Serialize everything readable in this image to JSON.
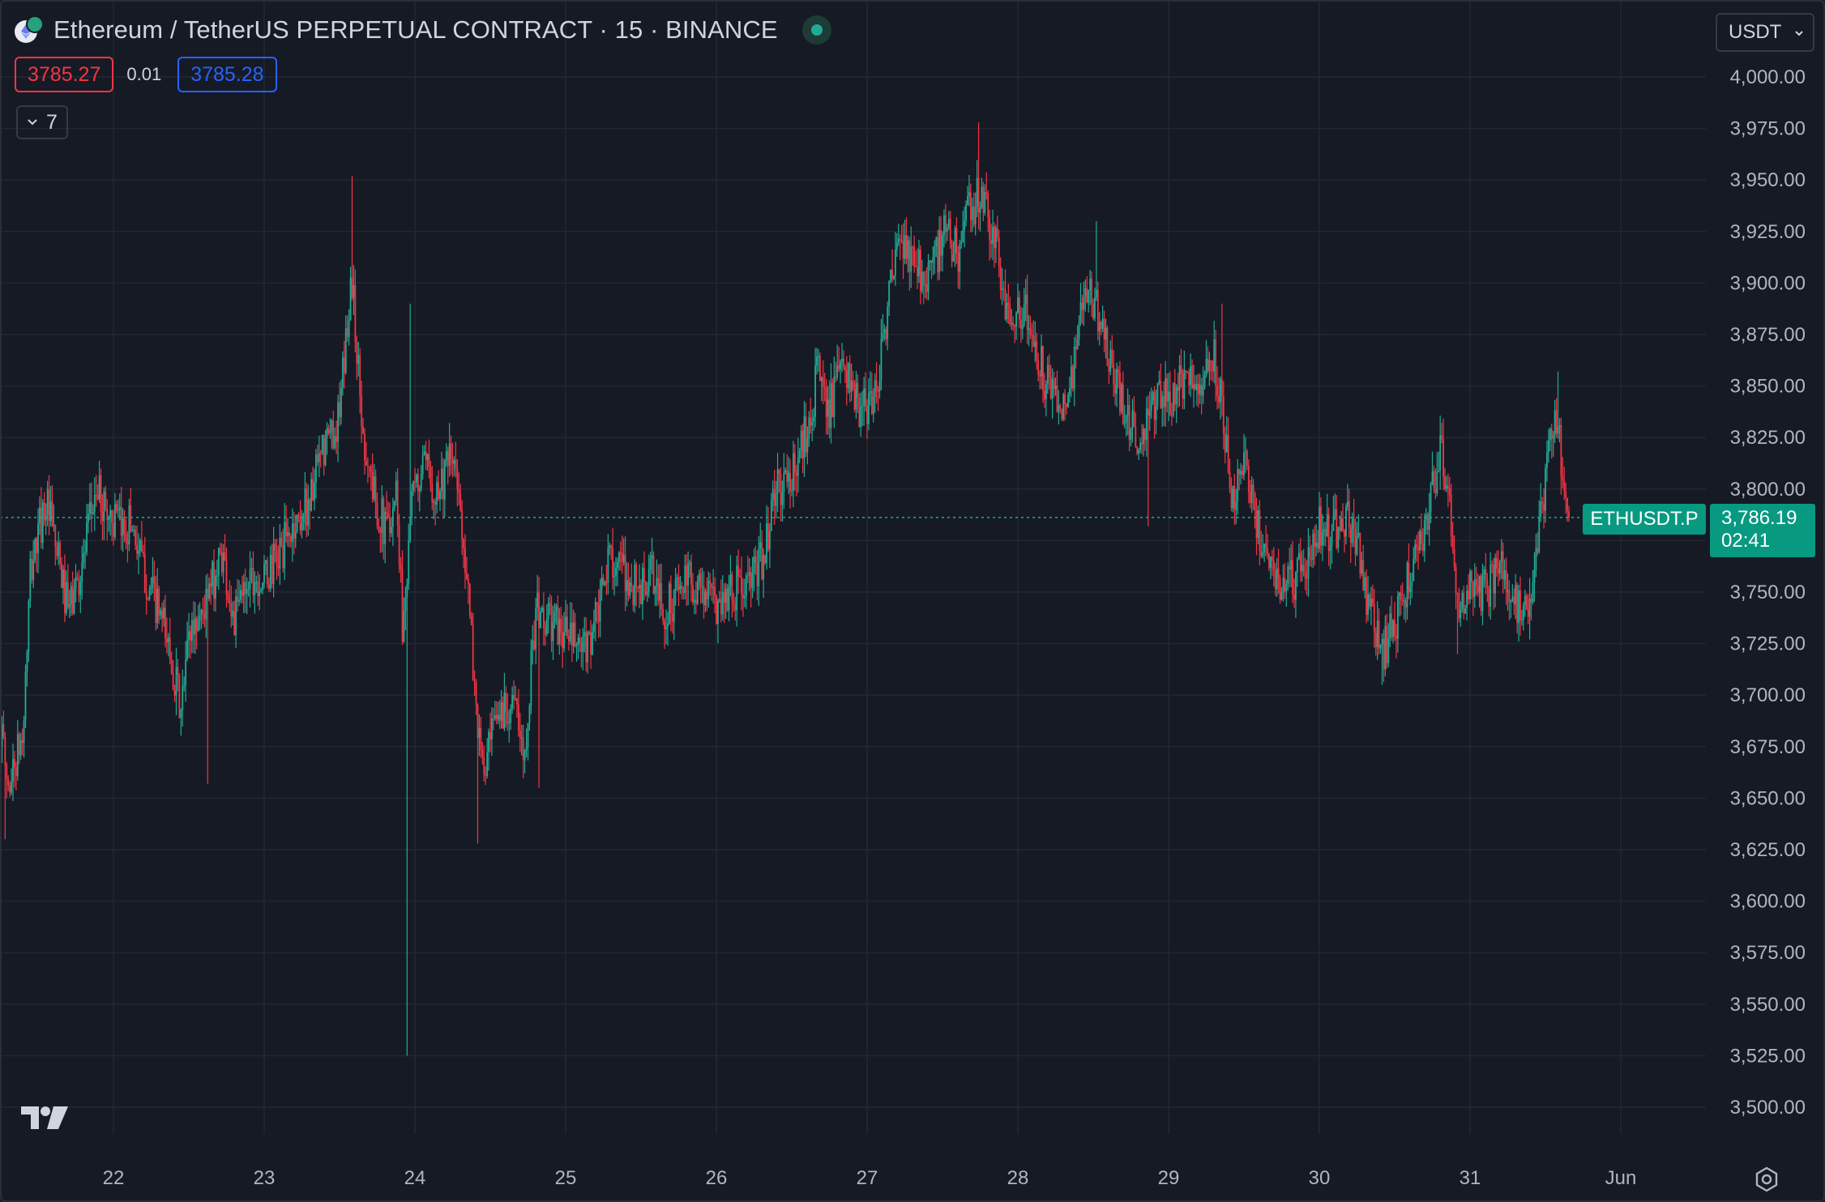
{
  "header": {
    "title": "Ethereum / TetherUS PERPETUAL CONTRACT · 15 · BINANCE",
    "bid": "3785.27",
    "spread": "0.01",
    "ask": "3785.28",
    "indicators_count": "7",
    "currency": "USDT"
  },
  "last_price": {
    "symbol": "ETHUSDT.P",
    "value": "3,786.19",
    "countdown": "02:41"
  },
  "colors": {
    "background": "#161a25",
    "grid": "#232733",
    "up": "#22ab94",
    "down": "#f23645",
    "axis_text": "#b2b5be"
  },
  "chart_data": {
    "type": "candlestick",
    "timeframe": "15",
    "ylim": [
      3490,
      4012
    ],
    "y_ticks": [
      "4,000.00",
      "3,975.00",
      "3,950.00",
      "3,925.00",
      "3,900.00",
      "3,875.00",
      "3,850.00",
      "3,825.00",
      "3,800.00",
      "3,775.00",
      "3,750.00",
      "3,725.00",
      "3,700.00",
      "3,675.00",
      "3,650.00",
      "3,625.00",
      "3,600.00",
      "3,575.00",
      "3,550.00",
      "3,525.00",
      "3,500.00"
    ],
    "x_ticks": [
      "22",
      "23",
      "24",
      "25",
      "26",
      "27",
      "28",
      "29",
      "30",
      "31",
      "Jun"
    ],
    "x_range": [
      21.25,
      32.0
    ],
    "last_price": 3786.19,
    "anchors": [
      [
        21.25,
        3685
      ],
      [
        21.3,
        3655
      ],
      [
        21.4,
        3680
      ],
      [
        21.45,
        3760
      ],
      [
        21.55,
        3795
      ],
      [
        21.62,
        3770
      ],
      [
        21.7,
        3740
      ],
      [
        21.8,
        3765
      ],
      [
        21.88,
        3800
      ],
      [
        21.95,
        3790
      ],
      [
        22.05,
        3780
      ],
      [
        22.12,
        3785
      ],
      [
        22.2,
        3760
      ],
      [
        22.3,
        3740
      ],
      [
        22.38,
        3720
      ],
      [
        22.45,
        3690
      ],
      [
        22.5,
        3730
      ],
      [
        22.62,
        3745
      ],
      [
        22.72,
        3770
      ],
      [
        22.8,
        3735
      ],
      [
        22.9,
        3760
      ],
      [
        23.0,
        3755
      ],
      [
        23.15,
        3775
      ],
      [
        23.3,
        3795
      ],
      [
        23.4,
        3820
      ],
      [
        23.5,
        3835
      ],
      [
        23.58,
        3905
      ],
      [
        23.65,
        3830
      ],
      [
        23.72,
        3800
      ],
      [
        23.8,
        3780
      ],
      [
        23.88,
        3800
      ],
      [
        23.92,
        3730
      ],
      [
        23.97,
        3790
      ],
      [
        24.05,
        3810
      ],
      [
        24.15,
        3800
      ],
      [
        24.25,
        3815
      ],
      [
        24.32,
        3780
      ],
      [
        24.4,
        3700
      ],
      [
        24.45,
        3660
      ],
      [
        24.55,
        3690
      ],
      [
        24.65,
        3700
      ],
      [
        24.72,
        3668
      ],
      [
        24.8,
        3740
      ],
      [
        24.9,
        3735
      ],
      [
        25.0,
        3730
      ],
      [
        25.12,
        3720
      ],
      [
        25.22,
        3740
      ],
      [
        25.3,
        3770
      ],
      [
        25.4,
        3755
      ],
      [
        25.5,
        3752
      ],
      [
        25.58,
        3758
      ],
      [
        25.65,
        3738
      ],
      [
        25.75,
        3752
      ],
      [
        25.85,
        3755
      ],
      [
        26.0,
        3745
      ],
      [
        26.1,
        3752
      ],
      [
        26.22,
        3752
      ],
      [
        26.3,
        3765
      ],
      [
        26.4,
        3800
      ],
      [
        26.5,
        3805
      ],
      [
        26.6,
        3830
      ],
      [
        26.68,
        3858
      ],
      [
        26.75,
        3840
      ],
      [
        26.85,
        3860
      ],
      [
        26.95,
        3835
      ],
      [
        27.05,
        3845
      ],
      [
        27.15,
        3895
      ],
      [
        27.22,
        3920
      ],
      [
        27.3,
        3910
      ],
      [
        27.38,
        3905
      ],
      [
        27.45,
        3910
      ],
      [
        27.52,
        3925
      ],
      [
        27.6,
        3915
      ],
      [
        27.68,
        3935
      ],
      [
        27.75,
        3945
      ],
      [
        27.85,
        3920
      ],
      [
        27.92,
        3885
      ],
      [
        28.0,
        3890
      ],
      [
        28.08,
        3880
      ],
      [
        28.15,
        3860
      ],
      [
        28.25,
        3840
      ],
      [
        28.35,
        3850
      ],
      [
        28.45,
        3895
      ],
      [
        28.55,
        3885
      ],
      [
        28.62,
        3855
      ],
      [
        28.72,
        3838
      ],
      [
        28.8,
        3822
      ],
      [
        28.88,
        3835
      ],
      [
        28.95,
        3850
      ],
      [
        29.02,
        3845
      ],
      [
        29.12,
        3853
      ],
      [
        29.2,
        3850
      ],
      [
        29.28,
        3870
      ],
      [
        29.35,
        3845
      ],
      [
        29.42,
        3795
      ],
      [
        29.5,
        3815
      ],
      [
        29.6,
        3778
      ],
      [
        29.7,
        3758
      ],
      [
        29.8,
        3755
      ],
      [
        29.9,
        3760
      ],
      [
        30.0,
        3782
      ],
      [
        30.1,
        3780
      ],
      [
        30.22,
        3785
      ],
      [
        30.32,
        3745
      ],
      [
        30.42,
        3720
      ],
      [
        30.52,
        3740
      ],
      [
        30.62,
        3762
      ],
      [
        30.72,
        3785
      ],
      [
        30.8,
        3820
      ],
      [
        30.88,
        3780
      ],
      [
        30.92,
        3745
      ],
      [
        31.0,
        3750
      ],
      [
        31.1,
        3750
      ],
      [
        31.2,
        3762
      ],
      [
        31.28,
        3745
      ],
      [
        31.38,
        3740
      ],
      [
        31.45,
        3770
      ],
      [
        31.52,
        3820
      ],
      [
        31.58,
        3838
      ],
      [
        31.62,
        3800
      ],
      [
        31.66,
        3786.19
      ]
    ]
  }
}
